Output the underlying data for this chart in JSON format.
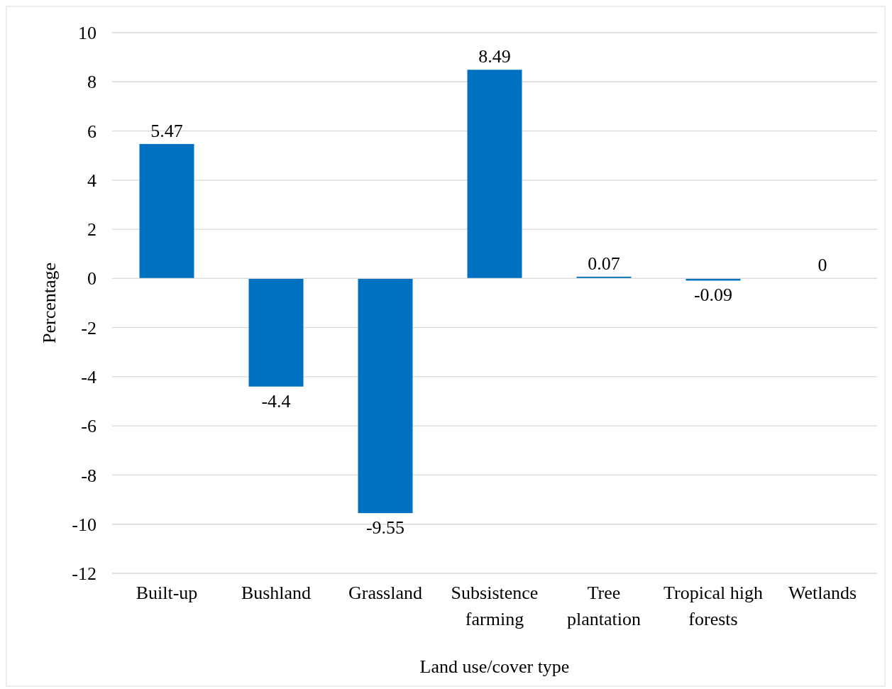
{
  "chart_data": {
    "type": "bar",
    "xlabel": "Land use/cover type",
    "ylabel": "Percentage",
    "categories": [
      "Built-up",
      "Bushland",
      "Grassland",
      "Subsistence farming",
      "Tree plantation",
      "Tropical high forests",
      "Wetlands"
    ],
    "values": [
      5.47,
      -4.4,
      -9.55,
      8.49,
      0.07,
      -0.09,
      0
    ],
    "color": "#0070c0",
    "ylim": [
      -12,
      10
    ],
    "yticks": [
      -12,
      -10,
      -8,
      -6,
      -4,
      -2,
      0,
      2,
      4,
      6,
      8,
      10
    ],
    "grid": "y",
    "data_labels": true
  }
}
